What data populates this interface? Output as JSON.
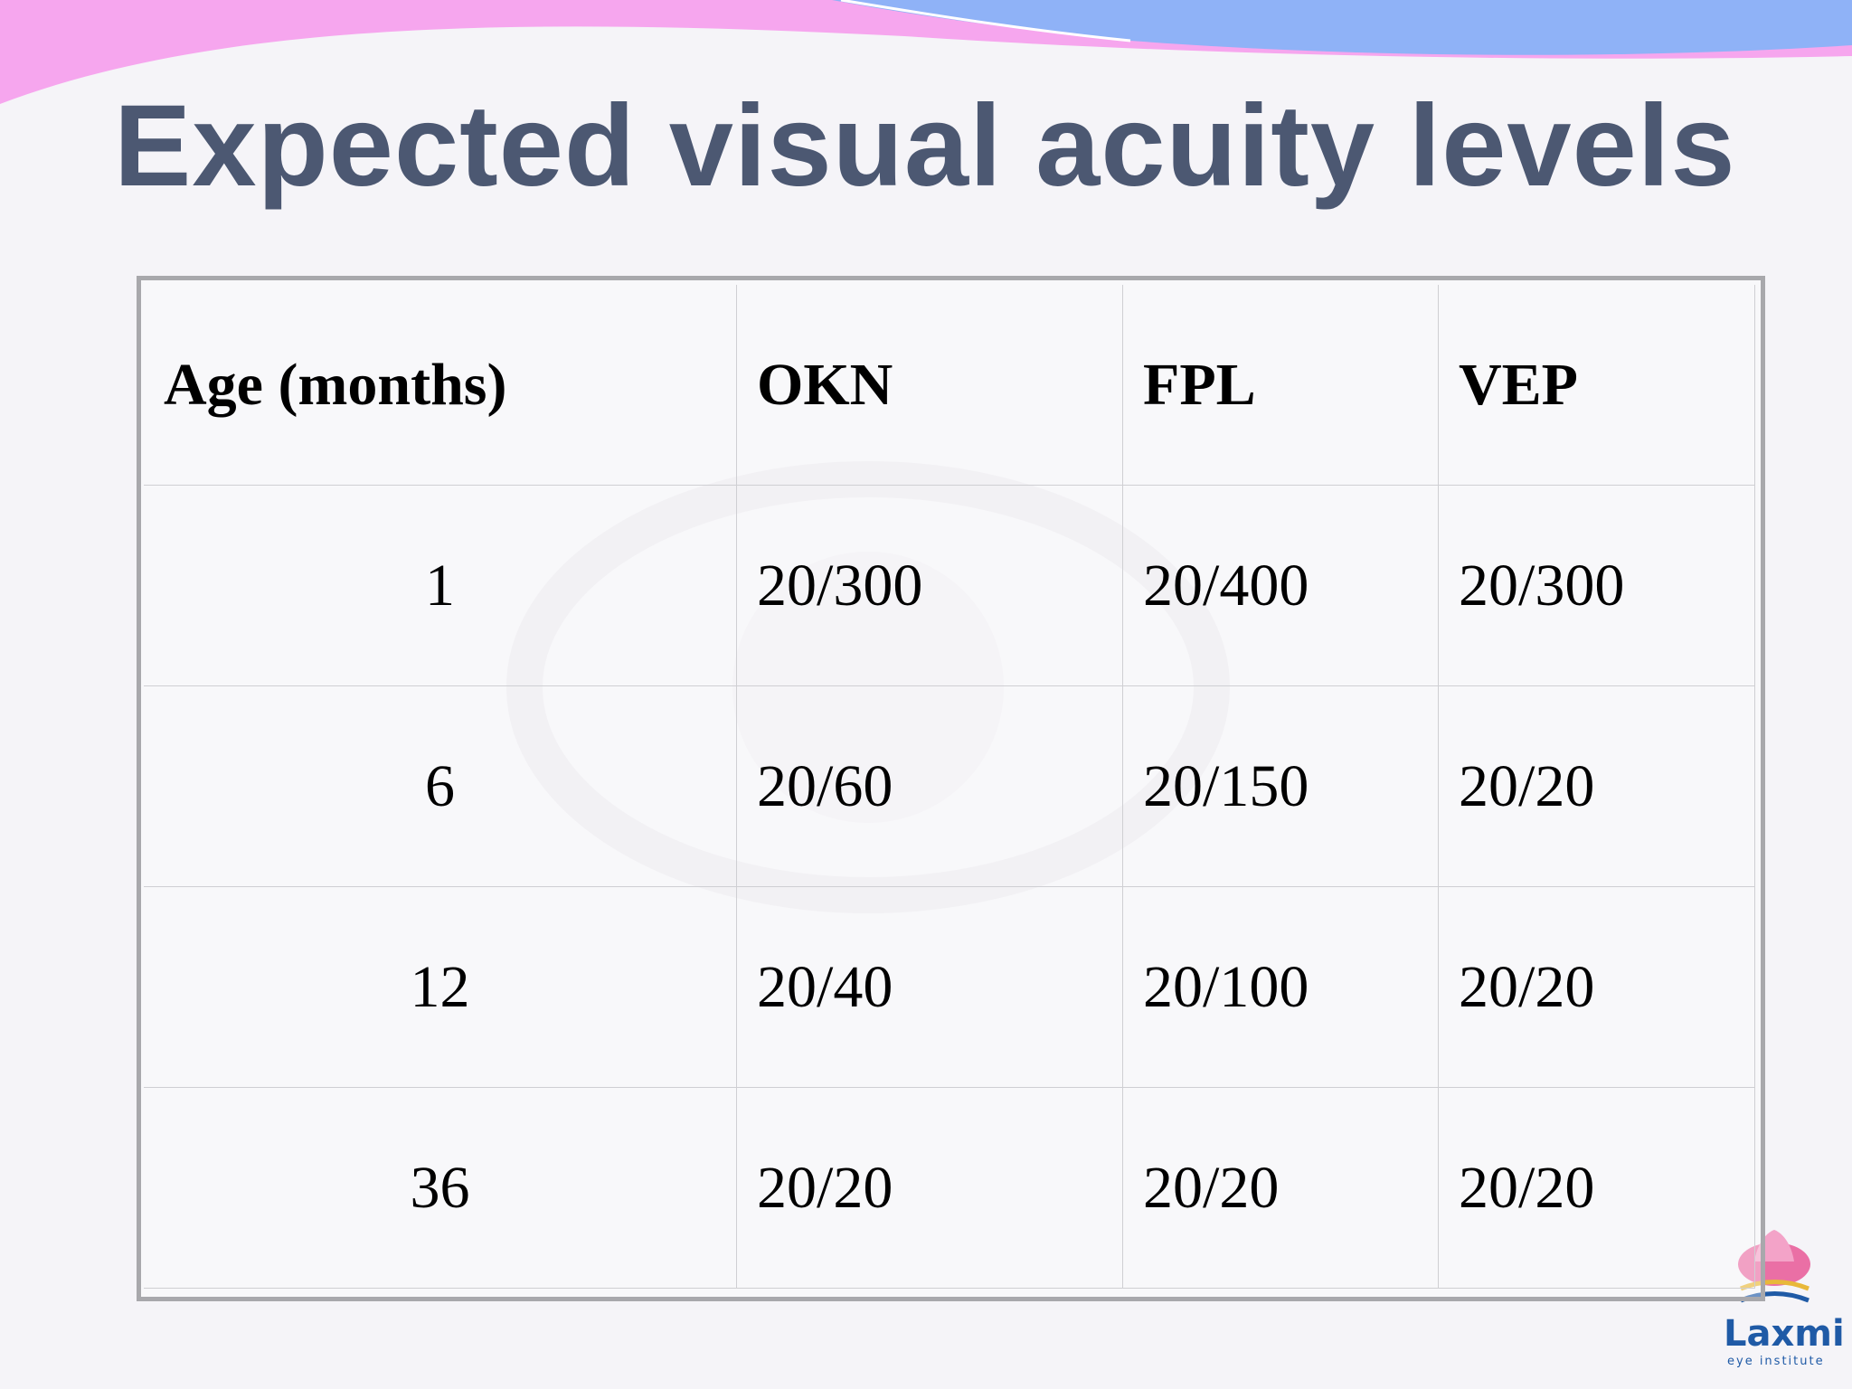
{
  "title": "Expected visual acuity levels",
  "table": {
    "header": [
      "Age (months)",
      "OKN",
      "FPL",
      "VEP"
    ],
    "rows": [
      [
        "1",
        "20/300",
        "20/400",
        "20/300"
      ],
      [
        "6",
        "20/60",
        "20/150",
        "20/20"
      ],
      [
        "12",
        "20/40",
        "20/100",
        "20/20"
      ],
      [
        "36",
        "20/20",
        "20/20",
        "20/20"
      ]
    ]
  },
  "logo": {
    "name": "Laxmi",
    "tagline": "eye institute"
  }
}
